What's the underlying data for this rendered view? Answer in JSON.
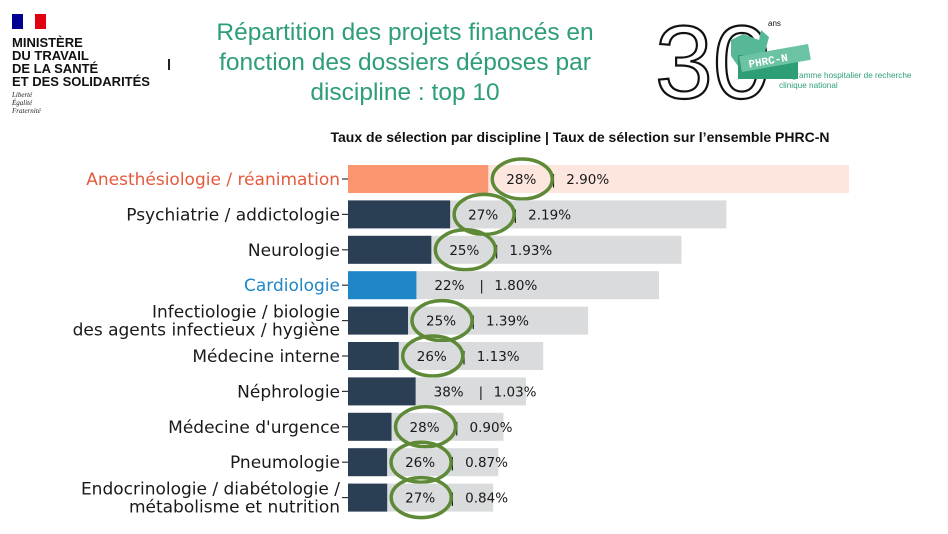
{
  "ministry": {
    "name_lines": [
      "MINISTÈRE",
      "DU TRAVAIL",
      "DE LA SANTÉ",
      "ET DES SOLIDARITÉS"
    ],
    "motto_lines": [
      "Liberté",
      "Égalité",
      "Fraternité"
    ],
    "flag_colors": [
      "#000091",
      "#ffffff",
      "#e1000f"
    ]
  },
  "title_lines": [
    "Répartition des projets financés en",
    "fonction des dossiers déposes par",
    "discipline : top 10"
  ],
  "logo": {
    "number": "30",
    "superscript": "ans",
    "badge_text": "PHRC-N",
    "caption_lines": [
      "Programme hospitalier de recherche",
      "clinique national"
    ]
  },
  "subtitle": "Taux de sélection par discipline | Taux de sélection sur l’ensemble PHRC-N",
  "colors": {
    "title": "#2e9e76",
    "highlight_bar": "#f9956f",
    "highlight_bg": "#fde6de",
    "highlight_label": "#e55a3c",
    "cardio_bar": "#1f86c8",
    "cardio_label": "#1f86c8",
    "default_bar": "#2b3f54",
    "background_bar": "#d9dbdd",
    "circle": "#5e8a38"
  },
  "chart_data": {
    "type": "bar",
    "orientation": "horizontal",
    "categories": [
      "Anesthésiologie / réanimation",
      "Psychiatrie / addictologie",
      "Neurologie",
      "Cardiologie",
      "Infectiologie / biologie\ndes agents infectieux / hygiène",
      "Médecine interne",
      "Néphrologie",
      "Médecine d'urgence",
      "Pneumologie",
      "Endocrinologie / diabétologie /\nmétabolisme et nutrition"
    ],
    "series": [
      {
        "values": [
          2.9,
          2.19,
          1.93,
          1.8,
          1.39,
          1.13,
          1.03,
          0.9,
          0.87,
          0.84
        ]
      }
    ],
    "foreground_fraction": [
      0.28,
      0.27,
      0.25,
      0.22,
      0.25,
      0.26,
      0.38,
      0.28,
      0.26,
      0.27
    ],
    "labels": [
      {
        "rate": "28%",
        "share": "2.90%"
      },
      {
        "rate": "27%",
        "share": "2.19%"
      },
      {
        "rate": "25%",
        "share": "1.93%"
      },
      {
        "rate": "22%",
        "share": "1.80%"
      },
      {
        "rate": "25%",
        "share": "1.39%"
      },
      {
        "rate": "26%",
        "share": "1.13%"
      },
      {
        "rate": "38%",
        "share": "1.03%"
      },
      {
        "rate": "28%",
        "share": "0.90%"
      },
      {
        "rate": "26%",
        "share": "0.87%"
      },
      {
        "rate": "27%",
        "share": "0.84%"
      }
    ],
    "separator": "|",
    "highlight_index": 0,
    "blue_index": 3,
    "circled": [
      true,
      true,
      true,
      false,
      true,
      true,
      false,
      true,
      true,
      true
    ]
  }
}
